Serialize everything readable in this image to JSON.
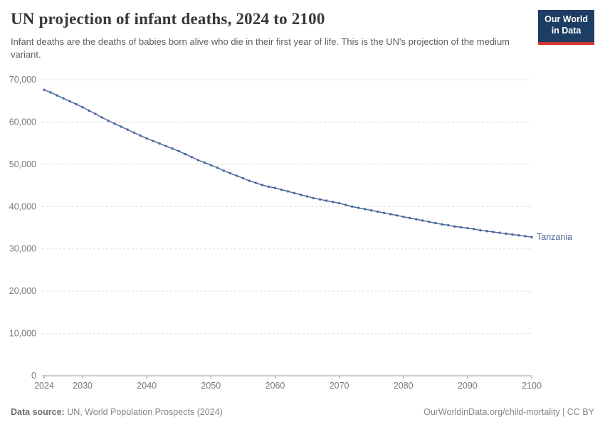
{
  "header": {
    "title": "UN projection of infant deaths, 2024 to 2100",
    "subtitle": "Infant deaths are the deaths of babies born alive who die in their first year of life. This is the UN's projection of the medium variant.",
    "logo": {
      "line1": "Our World",
      "line2": "in Data",
      "navy": "#1d3d63",
      "red": "#d0342c"
    }
  },
  "chart_data": {
    "type": "line",
    "title": "UN projection of infant deaths, 2024 to 2100",
    "xlabel": "",
    "ylabel": "",
    "xlim": [
      2024,
      2100
    ],
    "ylim": [
      0,
      70000
    ],
    "grid": "horizontal-dashed",
    "x_ticks": [
      2024,
      2030,
      2040,
      2050,
      2060,
      2070,
      2080,
      2090,
      2100
    ],
    "y_ticks": [
      0,
      10000,
      20000,
      30000,
      40000,
      50000,
      60000,
      70000
    ],
    "y_tick_labels": [
      "0",
      "10,000",
      "20,000",
      "30,000",
      "40,000",
      "50,000",
      "60,000",
      "70,000"
    ],
    "series": [
      {
        "name": "Tanzania",
        "color": "#4c6a9c",
        "x": [
          2024,
          2025,
          2026,
          2027,
          2028,
          2029,
          2030,
          2031,
          2032,
          2033,
          2034,
          2035,
          2036,
          2037,
          2038,
          2039,
          2040,
          2041,
          2042,
          2043,
          2044,
          2045,
          2046,
          2047,
          2048,
          2049,
          2050,
          2051,
          2052,
          2053,
          2054,
          2055,
          2056,
          2057,
          2058,
          2059,
          2060,
          2061,
          2062,
          2063,
          2064,
          2065,
          2066,
          2067,
          2068,
          2069,
          2070,
          2071,
          2072,
          2073,
          2074,
          2075,
          2076,
          2077,
          2078,
          2079,
          2080,
          2081,
          2082,
          2083,
          2084,
          2085,
          2086,
          2087,
          2088,
          2089,
          2090,
          2091,
          2092,
          2093,
          2094,
          2095,
          2096,
          2097,
          2098,
          2099,
          2100
        ],
        "values": [
          67600,
          67000,
          66300,
          65600,
          64900,
          64200,
          63500,
          62700,
          61900,
          61100,
          60300,
          59600,
          58900,
          58200,
          57500,
          56800,
          56100,
          55500,
          54900,
          54300,
          53700,
          53100,
          52400,
          51700,
          51000,
          50400,
          49800,
          49200,
          48500,
          47900,
          47300,
          46700,
          46100,
          45600,
          45100,
          44700,
          44400,
          44000,
          43600,
          43200,
          42800,
          42400,
          42000,
          41700,
          41400,
          41100,
          40800,
          40400,
          40000,
          39700,
          39400,
          39100,
          38800,
          38500,
          38200,
          37900,
          37600,
          37300,
          37000,
          36700,
          36400,
          36100,
          35800,
          35600,
          35300,
          35100,
          34900,
          34700,
          34400,
          34200,
          34000,
          33800,
          33600,
          33400,
          33200,
          33000,
          32800
        ]
      }
    ]
  },
  "footer": {
    "source_label": "Data source:",
    "source_text": " UN, World Population Prospects (2024)",
    "rights": "OurWorldinData.org/child-mortality | CC BY"
  }
}
